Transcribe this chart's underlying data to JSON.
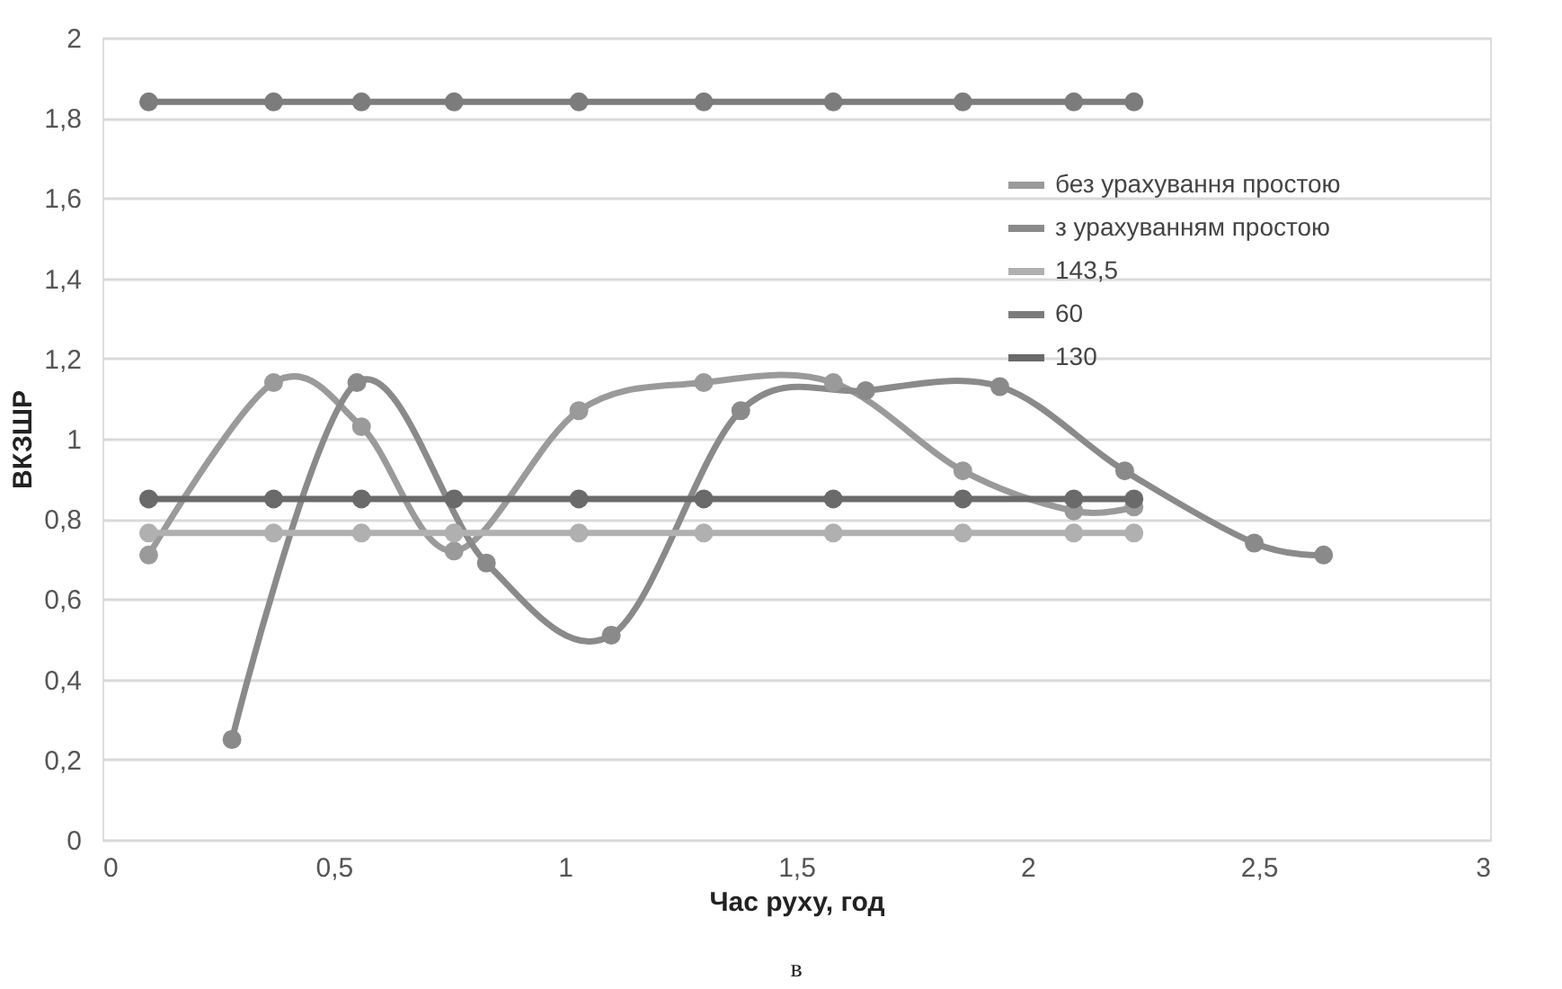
{
  "chart_data": {
    "type": "line",
    "xlabel": "Час руху, год",
    "ylabel": "ВКЗШР",
    "xlim": [
      0,
      3
    ],
    "xticks": [
      0,
      {
        "value": 0.5,
        "label": "0,5"
      },
      1,
      {
        "value": 1.5,
        "label": "1,5"
      },
      2,
      {
        "value": 2.5,
        "label": "2,5"
      },
      3
    ],
    "ylim": [
      0,
      2
    ],
    "yticks": [
      0,
      {
        "value": 0.2,
        "label": "0,2"
      },
      {
        "value": 0.4,
        "label": "0,4"
      },
      {
        "value": 0.6,
        "label": "0,6"
      },
      {
        "value": 0.8,
        "label": "0,8"
      },
      1,
      {
        "value": 1.2,
        "label": "1,2"
      },
      {
        "value": 1.4,
        "label": "1,4"
      },
      {
        "value": 1.6,
        "label": "1,6"
      },
      {
        "value": 1.8,
        "label": "1,8"
      },
      2
    ],
    "grid": "y",
    "legend": "top right",
    "marker": "circle",
    "line_style": "solid",
    "series": [
      {
        "name": "без урахування простою",
        "color": "#9a9a9a",
        "x": [
          0.1,
          0.37,
          0.56,
          0.76,
          1.03,
          1.3,
          1.58,
          1.86,
          2.1,
          2.23
        ],
        "values": [
          0.71,
          1.14,
          1.03,
          0.72,
          1.07,
          1.14,
          1.14,
          0.92,
          0.82,
          0.83
        ]
      },
      {
        "name": "з урахуванням простою",
        "color": "#8a8a8a",
        "x": [
          0.28,
          0.55,
          0.83,
          1.1,
          1.38,
          1.65,
          1.94,
          2.21,
          2.49,
          2.64
        ],
        "values": [
          0.25,
          1.14,
          0.69,
          0.51,
          1.07,
          1.12,
          1.13,
          0.92,
          0.74,
          0.71
        ]
      },
      {
        "name": "143,5",
        "color": "#b0b0b0",
        "x": [
          0.1,
          0.37,
          0.56,
          0.76,
          1.03,
          1.3,
          1.58,
          1.86,
          2.1,
          2.23
        ],
        "values": [
          0.765,
          0.765,
          0.765,
          0.765,
          0.765,
          0.765,
          0.765,
          0.765,
          0.765,
          0.765
        ]
      },
      {
        "name": "60",
        "color": "#7c7c7c",
        "x": [
          0.1,
          0.37,
          0.56,
          0.76,
          1.03,
          1.3,
          1.58,
          1.86,
          2.1,
          2.23
        ],
        "values": [
          1.84,
          1.84,
          1.84,
          1.84,
          1.84,
          1.84,
          1.84,
          1.84,
          1.84,
          1.84
        ]
      },
      {
        "name": "130",
        "color": "#6a6a6a",
        "x": [
          0.1,
          0.37,
          0.56,
          0.76,
          1.03,
          1.3,
          1.58,
          1.86,
          2.1,
          2.23
        ],
        "values": [
          0.85,
          0.85,
          0.85,
          0.85,
          0.85,
          0.85,
          0.85,
          0.85,
          0.85,
          0.85
        ]
      }
    ],
    "annotations": [
      "в"
    ]
  }
}
